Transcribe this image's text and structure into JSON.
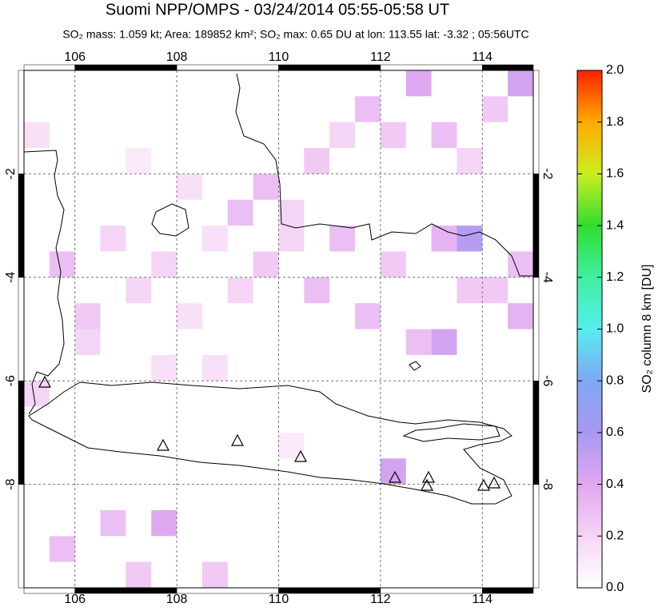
{
  "chart_data": {
    "type": "map",
    "title": "Suomi NPP/OMPS - 03/24/2014 05:55-05:58 UT",
    "subtitle": "SO₂ mass: 1.059 kt; Area: 189852 km²; SO₂ max: 0.65 DU at lon: 113.55 lat: -3.32 ; 05:56UTC",
    "xlim": [
      105,
      115
    ],
    "xticks": [
      106,
      108,
      110,
      112,
      114
    ],
    "ylim": [
      -10,
      0
    ],
    "yticks": [
      -8,
      -6,
      -4,
      -2
    ],
    "grid": true,
    "colorbar": {
      "label": "SO₂ column 8 km [DU]",
      "lim": [
        0,
        2
      ],
      "ticks": [
        {
          "value": 0,
          "label": "0.0"
        },
        0.2,
        0.4,
        0.6,
        0.8,
        {
          "value": 1,
          "label": "1.0"
        },
        1.2,
        1.4,
        1.6,
        1.8,
        {
          "value": 2,
          "label": "2.0"
        }
      ],
      "colormap": [
        "#ffffff",
        "#f5d5f5",
        "#e0a8f0",
        "#a899f0",
        "#7fa8f5",
        "#55eeee",
        "#40f0a0",
        "#30dd30",
        "#ccee20",
        "#ffaa00",
        "#ff2000"
      ]
    },
    "cells": {
      "lon": [
        105.25,
        107.25,
        108.25,
        109.75,
        110.25,
        110.75,
        111.25,
        111.75,
        112.25,
        112.75,
        113.25,
        113.75,
        114.25,
        114.75,
        105.75,
        106.75,
        107.75,
        108.75,
        109.25,
        109.75,
        110.25,
        111.25,
        112.25,
        113.25,
        113.75,
        114.25,
        114.75,
        106.25,
        107.25,
        108.25,
        109.25,
        110.75,
        111.75,
        112.75,
        113.25,
        113.75,
        105.25,
        106.25,
        107.75,
        108.75,
        112.25,
        106.75,
        107.75,
        108.75,
        105.75,
        107.25,
        110.25,
        114.75
      ],
      "lat": [
        -1.25,
        -1.75,
        -2.25,
        -2.25,
        -2.75,
        -1.75,
        -1.25,
        -0.75,
        -1.25,
        -0.25,
        -1.25,
        -1.75,
        -0.75,
        -0.25,
        -3.75,
        -3.25,
        -3.75,
        -3.25,
        -2.75,
        -3.75,
        -3.25,
        -3.25,
        -3.75,
        -3.25,
        -3.25,
        -4.25,
        -4.75,
        -4.75,
        -4.25,
        -4.75,
        -4.25,
        -4.25,
        -4.75,
        -5.25,
        -5.25,
        -4.25,
        -6.25,
        -5.25,
        -5.75,
        -5.75,
        -7.75,
        -8.75,
        -8.75,
        -9.75,
        -9.25,
        -9.75,
        -7.25,
        -3.75
      ],
      "values": [
        0.15,
        0.1,
        0.15,
        0.3,
        0.2,
        0.25,
        0.2,
        0.3,
        0.25,
        0.4,
        0.3,
        0.2,
        0.25,
        0.45,
        0.3,
        0.2,
        0.2,
        0.15,
        0.3,
        0.25,
        0.2,
        0.3,
        0.25,
        0.35,
        0.55,
        0.25,
        0.35,
        0.25,
        0.2,
        0.15,
        0.2,
        0.3,
        0.3,
        0.3,
        0.45,
        0.25,
        0.2,
        0.2,
        0.15,
        0.15,
        0.45,
        0.3,
        0.4,
        0.25,
        0.3,
        0.25,
        0.1,
        0.3
      ]
    }
  }
}
